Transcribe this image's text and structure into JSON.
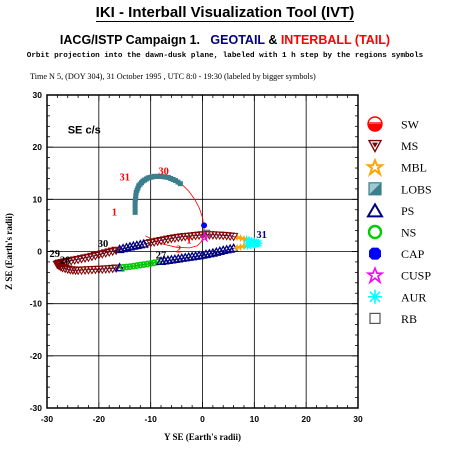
{
  "header": {
    "title": "IKI - Interball Visualization Tool (IVT)",
    "campaign": "IACG/ISTP Campaign 1.",
    "geotail": "GEOTAIL",
    "amp": "&",
    "interball": "INTERBALL (TAIL)",
    "note": "Orbit projection into the dawn-dusk plane, labeled with 1 h step by the regions symbols",
    "timeline": "Time N 5, (DOY 304), 31 October  1995 ,  UTC 8:0 - 19:30 (labeled by bigger symbols)"
  },
  "colors": {
    "geotail": "#000080",
    "interball": "#ff0000",
    "grid": "#000000"
  },
  "chart_data": {
    "type": "scatter",
    "xlabel": "Y SE (Earth's radii)",
    "ylabel": "Z SE (Earth's radii)",
    "xlim": [
      -30,
      30
    ],
    "ylim": [
      -30,
      30
    ],
    "xticks": [
      -30,
      -20,
      -10,
      0,
      10,
      20,
      30
    ],
    "yticks": [
      -30,
      -20,
      -10,
      0,
      10,
      20,
      30
    ],
    "grid": true,
    "frame_label": "SE c/s",
    "series": [
      {
        "name": "GEOTAIL",
        "color": "#000080",
        "x": [
          -28,
          -27,
          -25.5,
          -24,
          -22,
          -20,
          -18,
          -16,
          -14,
          -12,
          -10,
          -8,
          -6,
          -4,
          -2,
          0,
          2,
          4,
          6,
          8,
          10,
          10.8,
          9.5,
          8,
          6,
          4,
          2,
          0,
          -2,
          -4,
          -6,
          -8,
          -10,
          -12,
          -14,
          -16,
          -18,
          -20,
          -22,
          -24,
          -26,
          -27.5,
          -28
        ],
        "y": [
          -2.5,
          -3.1,
          -3.5,
          -3.6,
          -3.5,
          -3.4,
          -3.3,
          -3.1,
          -2.9,
          -2.6,
          -2.3,
          -1.9,
          -1.6,
          -1.3,
          -1,
          -0.7,
          -0.3,
          0.2,
          0.6,
          1.0,
          1.4,
          1.6,
          2.0,
          2.4,
          2.9,
          3.1,
          3.2,
          3.2,
          3.0,
          2.8,
          2.5,
          2.1,
          1.7,
          1.3,
          0.9,
          0.4,
          -0.1,
          -0.6,
          -1.1,
          -1.5,
          -1.9,
          -2.2,
          -2.5
        ]
      },
      {
        "name": "INTERBALL (TAIL)",
        "color": "#ff0000",
        "x": [
          -13,
          -13,
          -12.8,
          -12.3,
          -11.5,
          -10.5,
          -9.3,
          -8,
          -6.6,
          -5.2,
          -3.8,
          -2.6,
          -1.5,
          -0.6,
          0,
          0.3,
          0.2,
          -0.3,
          -1,
          -2.5,
          -5,
          -8,
          -11
        ],
        "y": [
          7.5,
          9.5,
          11.3,
          12.6,
          13.5,
          14.1,
          14.4,
          14.4,
          14.2,
          13.6,
          12.7,
          11.5,
          10.0,
          8.3,
          6.5,
          4.6,
          2.9,
          1.8,
          1.1,
          0.7,
          0.8,
          1.5,
          3.0
        ]
      }
    ],
    "regions": [
      {
        "name": "solar wind",
        "x_range": [
          -11,
          -2
        ],
        "y_range": [
          6,
          14
        ]
      },
      {
        "name": "magnetosheath",
        "x_range": [
          -24,
          6
        ],
        "y_range": [
          -3,
          3
        ]
      },
      {
        "name": "magnetopause boundary layer",
        "x_range": [
          7,
          10
        ],
        "y_range": [
          0.8,
          1.6
        ]
      },
      {
        "name": "lobes",
        "x_range": [
          -13,
          -4
        ],
        "y_range": [
          7,
          14.4
        ]
      },
      {
        "name": "plasma sheet",
        "x_range": [
          -20,
          7
        ],
        "y_range": [
          -3,
          2.5
        ]
      },
      {
        "name": "neutral sheet",
        "x_range": [
          -16,
          -9
        ],
        "y_range": [
          -3,
          -2
        ]
      },
      {
        "name": "cusp",
        "x_range": [
          0,
          3
        ],
        "y_range": [
          2,
          5
        ]
      },
      {
        "name": "aurora",
        "x_range": [
          9,
          11
        ],
        "y_range": [
          1,
          2
        ]
      },
      {
        "name": "radiation belts",
        "x_range": [
          0,
          1
        ],
        "y_range": [
          3,
          4
        ]
      }
    ],
    "annotations": [
      {
        "text": "30",
        "x": -7.5,
        "y": 14.8,
        "color": "#ff0000"
      },
      {
        "text": "31",
        "x": -15,
        "y": 13.6,
        "color": "#ff0000"
      },
      {
        "text": "1",
        "x": -17,
        "y": 6.9,
        "color": "#ff0000"
      },
      {
        "text": "1",
        "x": -2.6,
        "y": 1.5,
        "color": "#ff0000"
      },
      {
        "text": "2",
        "x": -4.6,
        "y": -0.2,
        "color": "#ff0000"
      },
      {
        "text": "30",
        "x": -19.2,
        "y": 0.9,
        "color": "#000000"
      },
      {
        "text": "29",
        "x": -28.5,
        "y": -1.1,
        "color": "#000000"
      },
      {
        "text": "28",
        "x": -26.5,
        "y": -2.3,
        "color": "#000000"
      },
      {
        "text": "27",
        "x": -8,
        "y": -1.3,
        "color": "#000000"
      },
      {
        "text": "31",
        "x": 11.4,
        "y": 2.6,
        "color": "#000080"
      }
    ]
  },
  "legend": [
    {
      "icon": "sw-icon",
      "label": "SW",
      "color": "#ff0000"
    },
    {
      "icon": "ms-icon",
      "label": "MS",
      "color": "#800000"
    },
    {
      "icon": "mbl-icon",
      "label": "MBL",
      "color": "#ffa500"
    },
    {
      "icon": "lobs-icon",
      "label": "LOBS",
      "color": "#3c7f8c"
    },
    {
      "icon": "ps-icon",
      "label": "PS",
      "color": "#000080"
    },
    {
      "icon": "ns-icon",
      "label": "NS",
      "color": "#00cc00"
    },
    {
      "icon": "cap-icon",
      "label": "CAP",
      "color": "#0000ff"
    },
    {
      "icon": "cusp-icon",
      "label": "CUSP",
      "color": "#ff00ff"
    },
    {
      "icon": "aur-icon",
      "label": "AUR",
      "color": "#00ffff"
    },
    {
      "icon": "rb-icon",
      "label": "RB",
      "color": "#555555"
    }
  ]
}
